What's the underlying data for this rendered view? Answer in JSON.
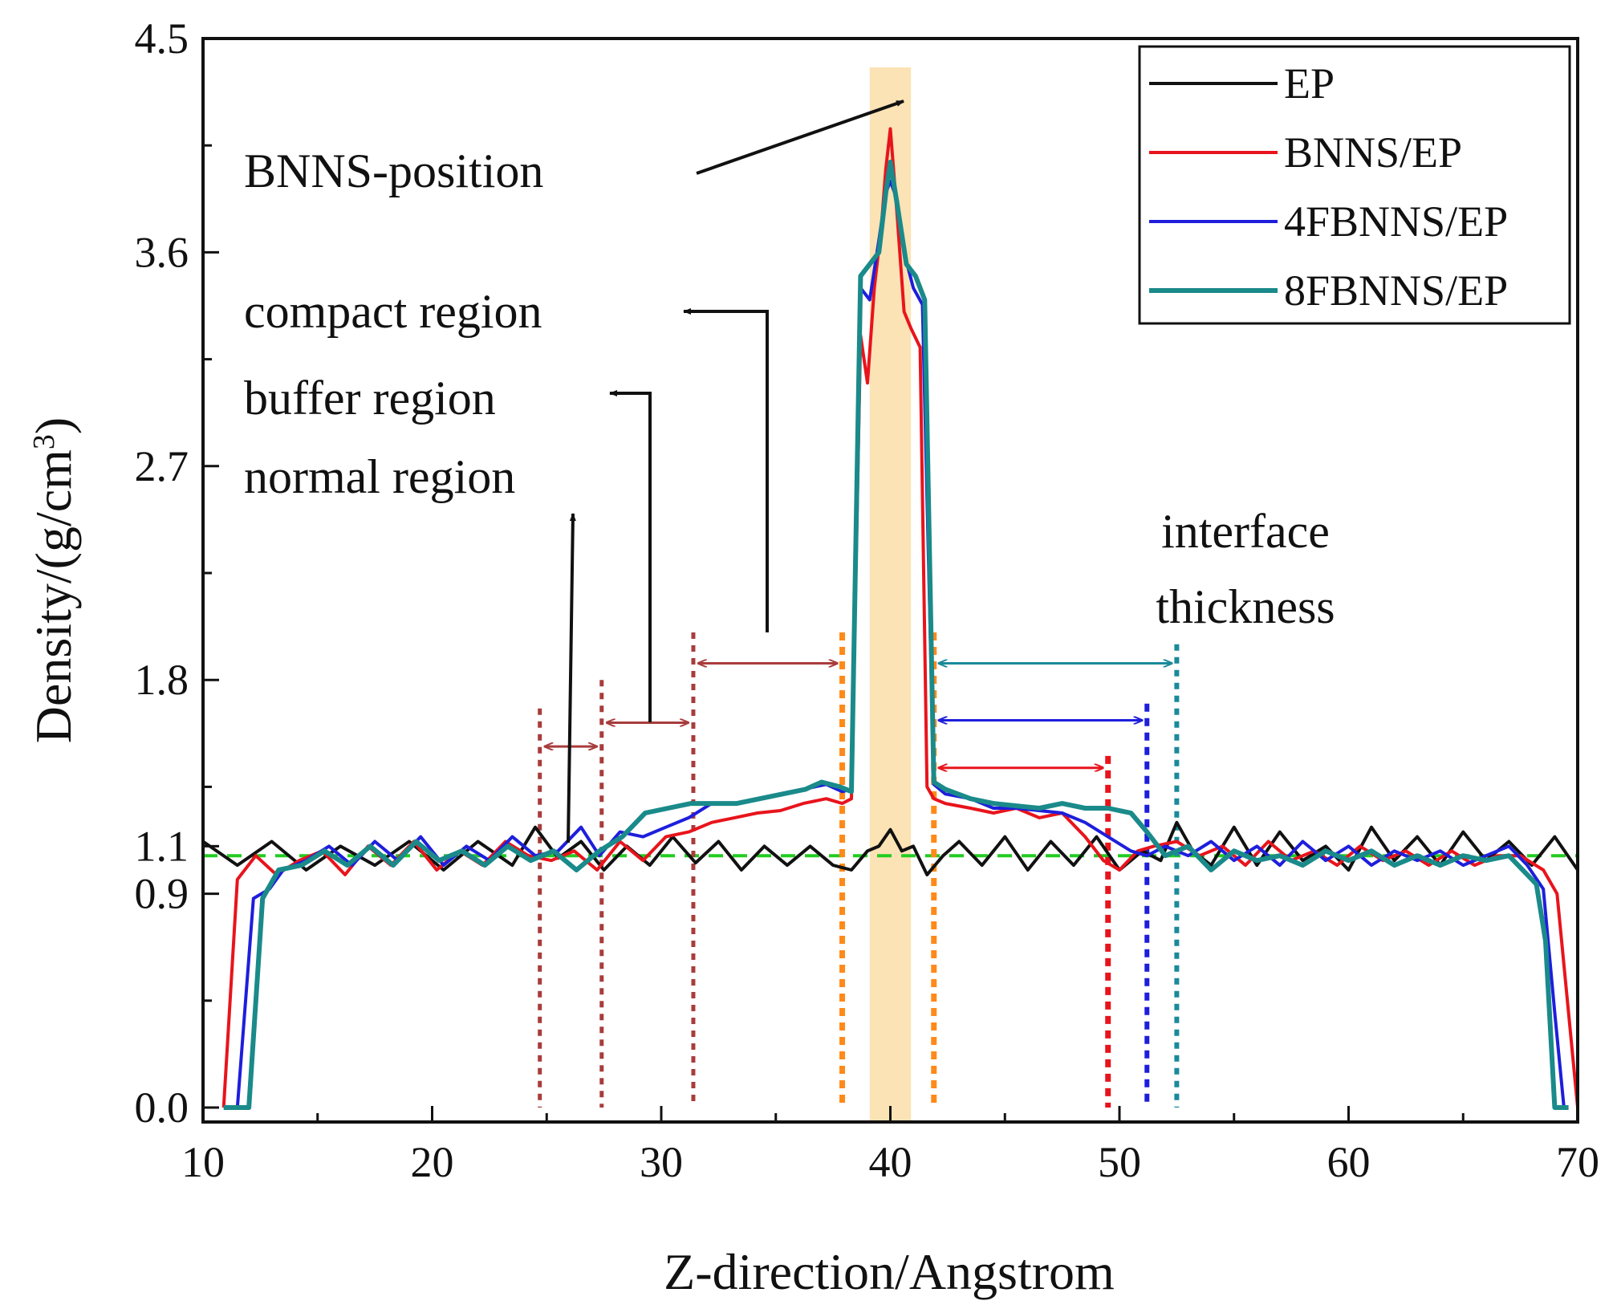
{
  "chart_data": {
    "type": "line",
    "xlabel": "Z-direction/Angstrom",
    "ylabel_main": "Density/(g/cm",
    "ylabel_sup": "3",
    "ylabel_end": ")",
    "xlim": [
      10,
      70
    ],
    "ylim": [
      0,
      4.5
    ],
    "xticks": [
      10,
      20,
      30,
      40,
      50,
      60,
      70
    ],
    "xtick_labels": [
      "10",
      "20",
      "30",
      "40",
      "50",
      "60",
      "70"
    ],
    "yticks": [
      0.0,
      0.9,
      1.1,
      1.8,
      2.7,
      3.6,
      4.5
    ],
    "ytick_labels": [
      "0.0",
      "0.9",
      "1.1",
      "1.8",
      "2.7",
      "3.6",
      "4.5"
    ],
    "reference_line": {
      "y": 1.06,
      "color": "#22cc22"
    },
    "bnns_band": {
      "x_from": 39.1,
      "x_to": 40.9,
      "color": "#fbe3b5"
    },
    "series": [
      {
        "name": "EP",
        "color": "#111111",
        "width": 4,
        "x": [
          10.0,
          11.5,
          13.0,
          14.5,
          16.0,
          17.5,
          19.0,
          20.5,
          22.0,
          23.5,
          24.5,
          25.5,
          26.5,
          27.5,
          28.5,
          29.5,
          30.5,
          31.5,
          32.5,
          33.5,
          34.5,
          35.5,
          36.5,
          37.5,
          38.3,
          39.0,
          39.5,
          40.0,
          40.5,
          41.0,
          41.6,
          42.3,
          43.0,
          44.0,
          45.0,
          46.0,
          47.0,
          48.0,
          49.0,
          50.0,
          51.0,
          51.8,
          52.5,
          53.2,
          54.0,
          55.0,
          56.0,
          57.0,
          58.0,
          59.0,
          60.0,
          61.0,
          62.0,
          63.0,
          64.0,
          65.0,
          66.0,
          67.0,
          68.0,
          69.0,
          70.0
        ],
        "y": [
          1.12,
          1.02,
          1.12,
          1.0,
          1.1,
          1.02,
          1.12,
          1.0,
          1.12,
          1.02,
          1.18,
          1.05,
          1.12,
          1.0,
          1.1,
          1.02,
          1.14,
          1.03,
          1.12,
          1.0,
          1.1,
          1.02,
          1.1,
          1.02,
          1.0,
          1.08,
          1.1,
          1.17,
          1.08,
          1.1,
          0.98,
          1.06,
          1.12,
          1.02,
          1.14,
          1.0,
          1.12,
          1.02,
          1.14,
          1.0,
          1.08,
          1.04,
          1.2,
          1.08,
          1.02,
          1.18,
          1.02,
          1.16,
          1.04,
          1.1,
          1.0,
          1.18,
          1.04,
          1.14,
          1.02,
          1.16,
          1.04,
          1.12,
          1.02,
          1.14,
          1.0
        ]
      },
      {
        "name": "BNNS/EP",
        "color": "#e8141c",
        "width": 4,
        "x": [
          10.9,
          11.5,
          12.3,
          13.2,
          14.2,
          15.2,
          16.2,
          17.2,
          18.2,
          19.2,
          20.2,
          21.2,
          22.2,
          23.2,
          24.2,
          25.2,
          26.2,
          27.2,
          28.2,
          29.2,
          30.2,
          31.2,
          32.2,
          33.2,
          34.2,
          35.2,
          36.2,
          37.2,
          37.9,
          38.3,
          38.7,
          39.0,
          39.3,
          39.6,
          39.8,
          40.0,
          40.3,
          40.6,
          40.9,
          41.3,
          41.6,
          41.9,
          42.4,
          43.5,
          44.5,
          45.5,
          46.5,
          47.5,
          48.5,
          49.3,
          50.0,
          50.8,
          51.5,
          52.5,
          53.5,
          54.5,
          55.5,
          56.5,
          57.5,
          58.5,
          59.5,
          60.5,
          61.5,
          62.5,
          63.5,
          64.5,
          65.5,
          66.5,
          67.5,
          68.5,
          69.1,
          69.6,
          70.0
        ],
        "y": [
          0.0,
          0.96,
          1.06,
          0.98,
          1.04,
          1.08,
          0.98,
          1.1,
          1.02,
          1.12,
          1.0,
          1.08,
          1.02,
          1.12,
          1.06,
          1.04,
          1.08,
          1.0,
          1.12,
          1.04,
          1.14,
          1.16,
          1.2,
          1.22,
          1.24,
          1.25,
          1.28,
          1.3,
          1.28,
          1.3,
          3.25,
          3.05,
          3.45,
          3.7,
          3.95,
          4.12,
          3.75,
          3.35,
          3.28,
          3.2,
          1.35,
          1.3,
          1.28,
          1.26,
          1.24,
          1.26,
          1.22,
          1.24,
          1.14,
          1.04,
          1.0,
          1.08,
          1.1,
          1.12,
          1.06,
          1.1,
          1.02,
          1.12,
          1.04,
          1.08,
          1.02,
          1.1,
          1.04,
          1.08,
          1.02,
          1.08,
          1.02,
          1.06,
          1.06,
          1.0,
          0.9,
          0.4,
          0.0
        ]
      },
      {
        "name": "4FBNNS/EP",
        "color": "#1e1edc",
        "width": 4,
        "x": [
          11.5,
          12.2,
          12.9,
          13.5,
          14.5,
          15.5,
          16.5,
          17.5,
          18.5,
          19.5,
          20.5,
          21.5,
          22.5,
          23.5,
          24.5,
          25.5,
          26.5,
          27.3,
          28.2,
          29.2,
          30.2,
          31.2,
          32.2,
          33.2,
          34.2,
          35.2,
          36.2,
          37.2,
          37.9,
          38.3,
          38.7,
          39.1,
          39.5,
          39.8,
          40.0,
          40.3,
          40.6,
          41.0,
          41.4,
          41.9,
          42.4,
          43.5,
          44.5,
          45.5,
          46.5,
          47.5,
          48.5,
          49.5,
          50.5,
          51.2,
          52.0,
          53.0,
          54.0,
          55.0,
          56.0,
          57.0,
          58.0,
          59.0,
          60.0,
          61.0,
          62.0,
          63.0,
          64.0,
          65.0,
          66.0,
          67.0,
          67.8,
          68.5,
          69.0,
          69.4
        ],
        "y": [
          0.0,
          0.88,
          0.92,
          1.0,
          1.04,
          1.1,
          1.02,
          1.12,
          1.04,
          1.14,
          1.02,
          1.1,
          1.04,
          1.14,
          1.06,
          1.08,
          1.18,
          1.06,
          1.16,
          1.14,
          1.18,
          1.22,
          1.28,
          1.28,
          1.3,
          1.32,
          1.34,
          1.36,
          1.33,
          1.34,
          3.45,
          3.4,
          3.65,
          3.85,
          3.9,
          3.82,
          3.6,
          3.45,
          3.38,
          1.36,
          1.32,
          1.3,
          1.26,
          1.26,
          1.25,
          1.24,
          1.2,
          1.14,
          1.08,
          1.06,
          1.1,
          1.06,
          1.12,
          1.04,
          1.1,
          1.02,
          1.12,
          1.04,
          1.1,
          1.02,
          1.08,
          1.04,
          1.08,
          1.02,
          1.06,
          1.1,
          1.02,
          0.92,
          0.4,
          0.0
        ]
      },
      {
        "name": "8FBNNS/EP",
        "color": "#1a8a8a",
        "width": 6,
        "x": [
          10.9,
          12.0,
          12.6,
          13.3,
          14.3,
          15.3,
          16.3,
          17.3,
          18.3,
          19.3,
          20.3,
          21.3,
          22.3,
          23.3,
          24.3,
          25.3,
          26.3,
          27.3,
          28.3,
          29.3,
          30.3,
          31.3,
          32.3,
          33.3,
          34.3,
          35.3,
          36.3,
          37.0,
          37.8,
          38.3,
          38.7,
          39.1,
          39.5,
          39.8,
          40.0,
          40.3,
          40.7,
          41.1,
          41.5,
          41.9,
          42.4,
          43.5,
          44.5,
          45.5,
          46.5,
          47.5,
          48.5,
          49.5,
          50.5,
          51.2,
          52.0,
          53.0,
          54.0,
          55.0,
          56.0,
          57.0,
          58.0,
          59.0,
          60.0,
          61.0,
          62.0,
          63.0,
          64.0,
          65.0,
          66.0,
          67.0,
          67.6,
          68.2,
          68.6,
          69.0,
          69.6
        ],
        "y": [
          0.0,
          0.0,
          0.88,
          1.0,
          1.02,
          1.08,
          1.02,
          1.1,
          1.02,
          1.12,
          1.04,
          1.08,
          1.02,
          1.1,
          1.04,
          1.08,
          1.0,
          1.08,
          1.14,
          1.24,
          1.26,
          1.28,
          1.28,
          1.28,
          1.3,
          1.32,
          1.34,
          1.37,
          1.35,
          1.33,
          3.5,
          3.55,
          3.6,
          3.85,
          3.98,
          3.8,
          3.55,
          3.5,
          3.4,
          1.37,
          1.34,
          1.3,
          1.28,
          1.27,
          1.26,
          1.28,
          1.26,
          1.26,
          1.24,
          1.16,
          1.06,
          1.1,
          1.0,
          1.08,
          1.04,
          1.06,
          1.02,
          1.08,
          1.04,
          1.08,
          1.02,
          1.06,
          1.02,
          1.06,
          1.04,
          1.06,
          1.0,
          0.94,
          0.7,
          0.0,
          0.0
        ]
      }
    ],
    "annotations": {
      "bnns_position": "BNNS-position",
      "compact_region": "compact region",
      "buffer_region": "buffer region",
      "normal_region": "normal region",
      "interface_line1": "interface",
      "interface_line2": "thickness"
    },
    "region_markers": {
      "brown_lines_x": [
        24.7,
        27.4,
        31.4
      ],
      "orange_lines_x": [
        37.9,
        41.9
      ],
      "red_line_x": 49.5,
      "blue_line_x": 51.2,
      "teal_line_x": 52.5
    },
    "colors": {
      "brown": "#a83c3c",
      "orange": "#ff8a1a",
      "red": "#e8141c",
      "blue": "#1e1edc",
      "teal": "#1a8a9a"
    }
  }
}
